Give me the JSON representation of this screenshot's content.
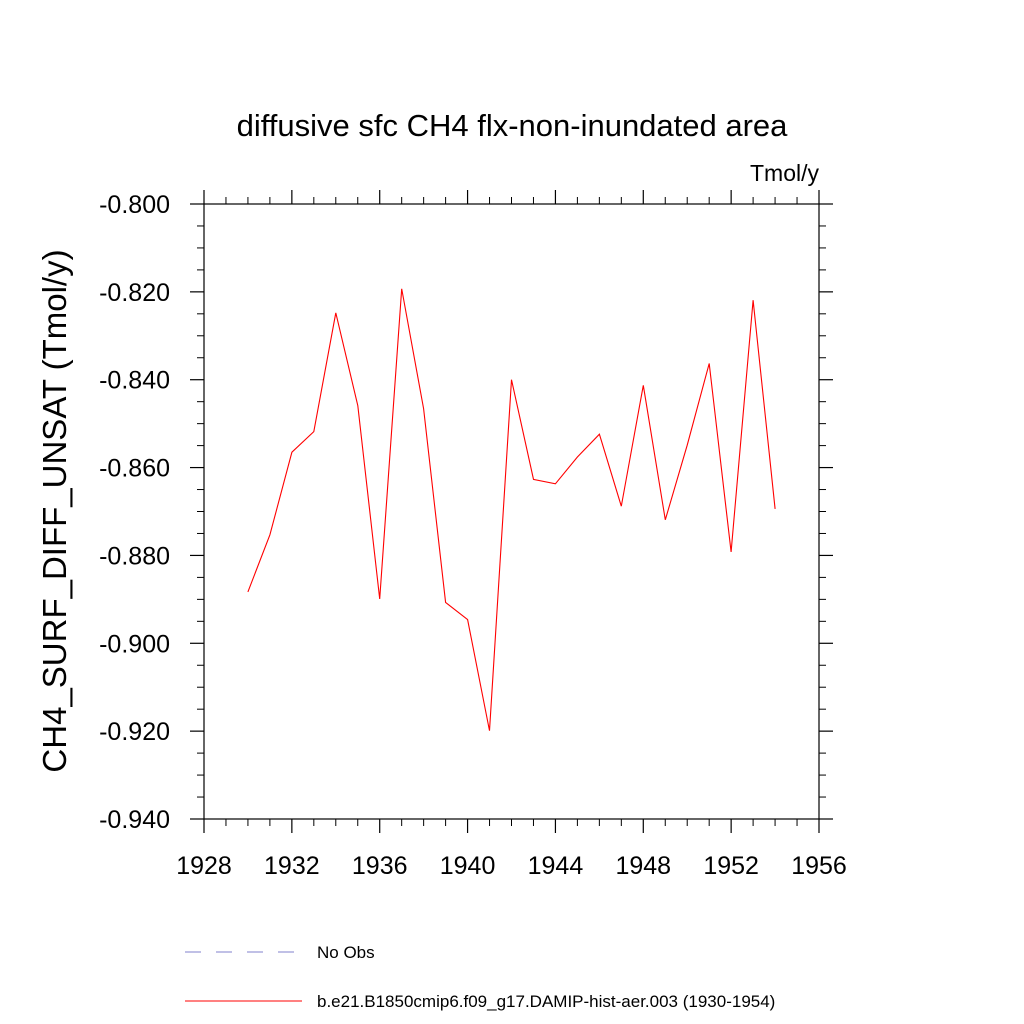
{
  "chart_data": {
    "type": "line",
    "title": "diffusive sfc CH4 flx-non-inundated area",
    "units_label": "Tmol/y",
    "xlabel": "",
    "ylabel": "CH4_SURF_DIFF_UNSAT  (Tmol/y)",
    "xlim": [
      1928,
      1956
    ],
    "ylim": [
      -0.94,
      -0.8
    ],
    "x_ticks": [
      1928,
      1932,
      1936,
      1940,
      1944,
      1948,
      1952,
      1956
    ],
    "y_ticks": [
      -0.94,
      -0.92,
      -0.9,
      -0.88,
      -0.86,
      -0.84,
      -0.82,
      -0.8
    ],
    "x_tick_labels": [
      "1928",
      "1932",
      "1936",
      "1940",
      "1944",
      "1948",
      "1952",
      "1956"
    ],
    "y_tick_labels": [
      "-0.940",
      "-0.920",
      "-0.900",
      "-0.880",
      "-0.860",
      "-0.840",
      "-0.820",
      "-0.800"
    ],
    "grid": false,
    "legend_position": "bottom",
    "series": [
      {
        "name": "b.e21.B1850cmip6.f09_g17.DAMIP-hist-aer.003 (1930-1954)",
        "color": "#ff0000",
        "style": "solid",
        "x": [
          1930,
          1931,
          1932,
          1933,
          1934,
          1935,
          1936,
          1937,
          1938,
          1939,
          1940,
          1941,
          1942,
          1943,
          1944,
          1945,
          1946,
          1947,
          1948,
          1949,
          1950,
          1951,
          1952,
          1953,
          1954
        ],
        "values": [
          -0.8883,
          -0.8753,
          -0.8565,
          -0.8518,
          -0.8248,
          -0.8459,
          -0.8899,
          -0.8193,
          -0.8466,
          -0.8907,
          -0.8946,
          -0.9199,
          -0.84,
          -0.8627,
          -0.8637,
          -0.8576,
          -0.8524,
          -0.8688,
          -0.8413,
          -0.8719,
          -0.8549,
          -0.8363,
          -0.8792,
          -0.8219,
          -0.8694
        ]
      },
      {
        "name": "No Obs",
        "color": "#8080cc",
        "style": "dashed",
        "x": [],
        "values": []
      }
    ],
    "legend": [
      {
        "label": "No Obs",
        "color": "#8080cc",
        "style": "dashed"
      },
      {
        "label": "b.e21.B1850cmip6.f09_g17.DAMIP-hist-aer.003 (1930-1954)",
        "color": "#ff0000",
        "style": "solid"
      }
    ]
  }
}
